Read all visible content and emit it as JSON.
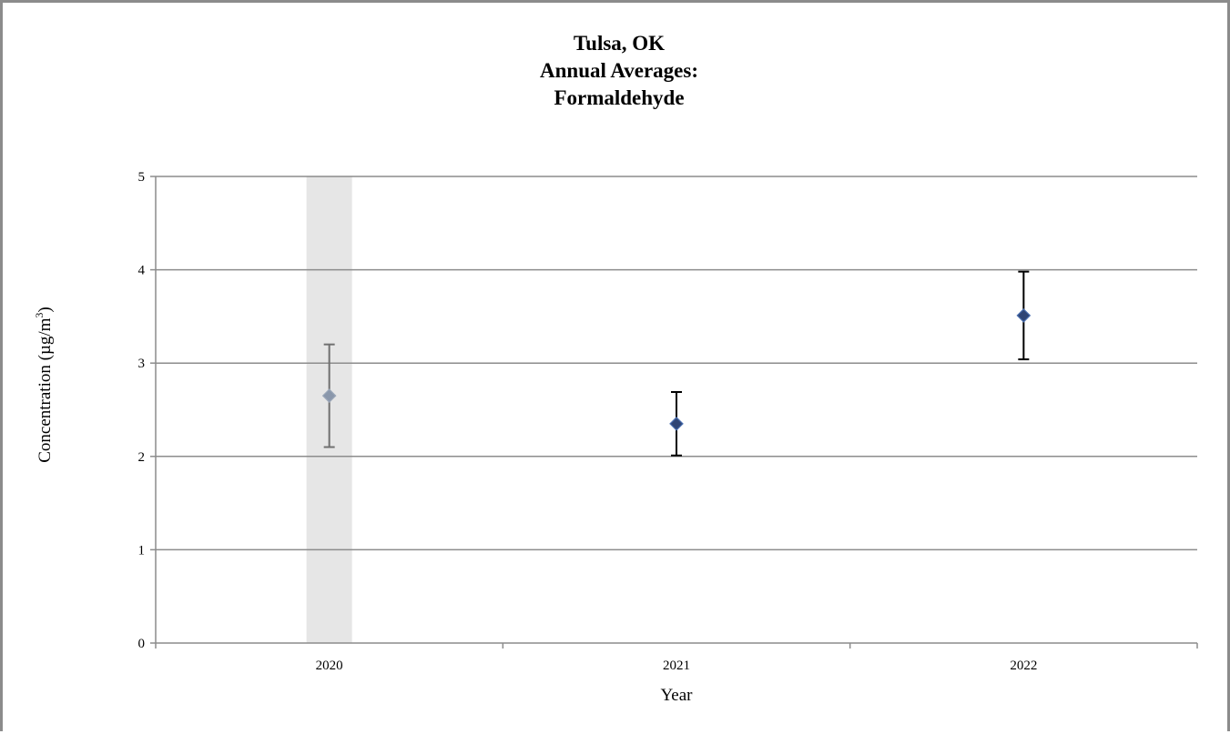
{
  "chart_data": {
    "type": "scatter",
    "title_lines": [
      "Tulsa, OK",
      "Annual Averages:",
      "Formaldehyde"
    ],
    "xlabel": "Year",
    "ylabel": {
      "text": "Concentration (µg/m",
      "superscript": "3",
      "suffix": ")"
    },
    "categories": [
      "2020",
      "2021",
      "2022"
    ],
    "ylim": [
      0,
      5
    ],
    "yticks": [
      "0",
      "1",
      "2",
      "3",
      "4",
      "5"
    ],
    "grid": true,
    "points": [
      {
        "x": "2020",
        "mean": 2.65,
        "lower": 2.1,
        "upper": 3.2,
        "highlighted": true
      },
      {
        "x": "2021",
        "mean": 2.35,
        "lower": 2.01,
        "upper": 2.69,
        "highlighted": false
      },
      {
        "x": "2022",
        "mean": 3.51,
        "lower": 3.04,
        "upper": 3.98,
        "highlighted": false
      }
    ],
    "colors": {
      "marker": "#2f4575",
      "marker_highlighted": "#8a97ab",
      "error_bar": "#000000",
      "error_bar_highlighted": "#707070",
      "highlight_band": "#e6e6e6",
      "gridline": "#8c8c8c"
    }
  }
}
